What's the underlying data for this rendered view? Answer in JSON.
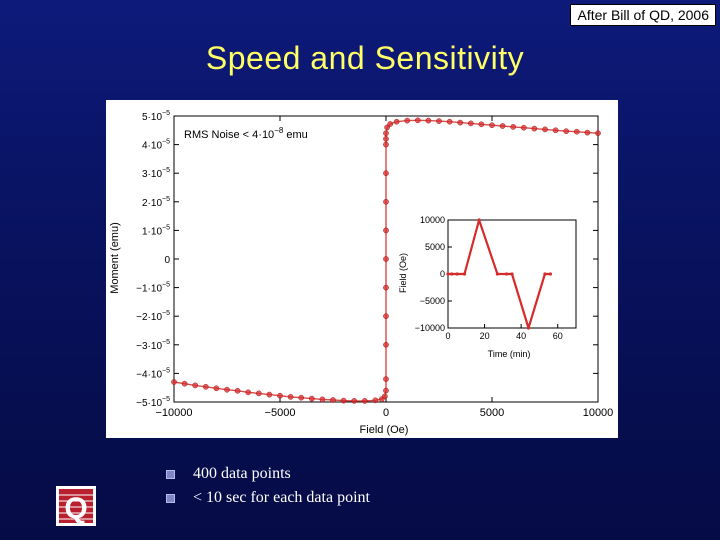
{
  "slide": {
    "credit": "After Bill of QD, 2006",
    "title": "Speed and Sensitivity",
    "bullets": [
      "400 data points",
      "< 10 sec for each data point"
    ],
    "logo_letter": "Q"
  },
  "colors": {
    "background": "#0a1570",
    "title": "#ffff66",
    "series": "#d62b2b",
    "bullet": "#7f86c8"
  },
  "chart_data": [
    {
      "type": "scatter",
      "title": "",
      "xlabel": "Field (Oe)",
      "ylabel": "Moment (emu)",
      "xlim": [
        -10000,
        10000
      ],
      "ylim": [
        -5e-05,
        5e-05
      ],
      "x_ticks": [
        -10000,
        -5000,
        0,
        5000,
        10000
      ],
      "x_tick_labels": [
        "−10000",
        "−5000",
        "0",
        "5000",
        "10000"
      ],
      "y_ticks": [
        5e-05,
        4e-05,
        3e-05,
        2e-05,
        1e-05,
        0,
        -1e-05,
        -2e-05,
        -3e-05,
        -4e-05,
        -5e-05
      ],
      "y_tick_labels": [
        [
          "5·10",
          "−5"
        ],
        [
          "4·10",
          "−5"
        ],
        [
          "3·10",
          "−5"
        ],
        [
          "2·10",
          "−5"
        ],
        [
          "1·10",
          "−5"
        ],
        [
          "0",
          ""
        ],
        [
          "−1·10",
          "−5"
        ],
        [
          "−2·10",
          "−5"
        ],
        [
          "−3·10",
          "−5"
        ],
        [
          "−4·10",
          "−5"
        ],
        [
          "−5·10",
          "−5"
        ]
      ],
      "annotation": {
        "text": "RMS Noise < 4·10",
        "sup": "−8",
        "unit": " emu"
      },
      "grid": false,
      "series": [
        {
          "name": "",
          "x": [
            -10000,
            -9500,
            -9000,
            -8500,
            -8000,
            -7500,
            -7000,
            -6500,
            -6000,
            -5500,
            -5000,
            -4500,
            -4000,
            -3500,
            -3000,
            -2500,
            -2000,
            -1500,
            -1000,
            -500,
            -200,
            -50,
            0,
            0,
            0,
            0,
            0,
            0,
            0,
            0,
            0,
            0,
            0,
            0,
            50,
            200,
            500,
            1000,
            1500,
            2000,
            2500,
            3000,
            3500,
            4000,
            4500,
            5000,
            5500,
            6000,
            6500,
            7000,
            7500,
            8000,
            8500,
            9000,
            9500,
            10000
          ],
          "y": [
            -4.3e-05,
            -4.36e-05,
            -4.42e-05,
            -4.47e-05,
            -4.52e-05,
            -4.57e-05,
            -4.61e-05,
            -4.66e-05,
            -4.7e-05,
            -4.74e-05,
            -4.78e-05,
            -4.82e-05,
            -4.85e-05,
            -4.88e-05,
            -4.91e-05,
            -4.93e-05,
            -4.95e-05,
            -4.96e-05,
            -4.96e-05,
            -4.94e-05,
            -4.9e-05,
            -4.8e-05,
            -4.6e-05,
            -4.2e-05,
            -3e-05,
            -2e-05,
            -1e-05,
            0,
            1e-05,
            2e-05,
            3e-05,
            4e-05,
            4.2e-05,
            4.4e-05,
            4.6e-05,
            4.72e-05,
            4.8e-05,
            4.84e-05,
            4.85e-05,
            4.84e-05,
            4.82e-05,
            4.8e-05,
            4.77e-05,
            4.74e-05,
            4.71e-05,
            4.68e-05,
            4.65e-05,
            4.62e-05,
            4.59e-05,
            4.56e-05,
            4.53e-05,
            4.5e-05,
            4.47e-05,
            4.45e-05,
            4.42e-05,
            4.4e-05
          ]
        }
      ]
    },
    {
      "type": "line",
      "title": "",
      "xlabel": "Time (min)",
      "ylabel": "Field (Oe)",
      "xlim": [
        0,
        70
      ],
      "ylim": [
        -10000,
        10000
      ],
      "x_ticks": [
        0,
        20,
        40,
        60
      ],
      "y_ticks": [
        10000,
        5000,
        0,
        -5000,
        -10000
      ],
      "y_tick_labels": [
        "10000",
        "5000",
        "0",
        "−5000",
        "−10000"
      ],
      "series": [
        {
          "name": "",
          "x": [
            0,
            2,
            5,
            9,
            17,
            27,
            32,
            35,
            44,
            53,
            56
          ],
          "y": [
            0,
            0,
            0,
            0,
            10000,
            0,
            0,
            0,
            -10000,
            0,
            0
          ]
        }
      ]
    }
  ]
}
